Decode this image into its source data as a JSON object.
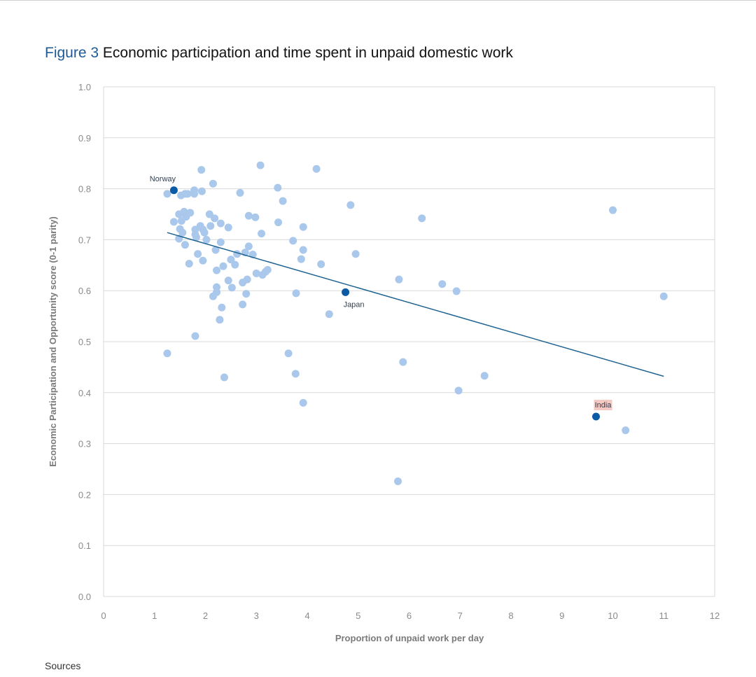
{
  "figure": {
    "label": "Figure 3",
    "title": "Economic participation and time spent in unpaid domestic work"
  },
  "footer": {
    "sources_label": "Sources"
  },
  "colors": {
    "point": "#a9c8eb",
    "highlight": "#0b5aa5",
    "trend": "#1f6391",
    "grid": "#d9d9d9",
    "tick_text": "#8a8a8a",
    "axis_label_text": "#7a7a7a",
    "india_label_bg": "#f4c9c4"
  },
  "chart_data": {
    "type": "scatter",
    "xlabel": "Proportion of unpaid work per day",
    "ylabel": "Economic Participation and Opportunity score (0-1 parity)",
    "xlim": [
      0,
      12
    ],
    "ylim": [
      0,
      1
    ],
    "xticks": [
      0,
      1,
      2,
      3,
      4,
      5,
      6,
      7,
      8,
      9,
      10,
      11,
      12
    ],
    "yticks": [
      "0.0",
      "0.1",
      "0.2",
      "0.3",
      "0.4",
      "0.5",
      "0.6",
      "0.7",
      "0.8",
      "0.9",
      "1.0"
    ],
    "grid": "horizontal",
    "points": [
      [
        1.25,
        0.79
      ],
      [
        1.6,
        0.79
      ],
      [
        1.78,
        0.79
      ],
      [
        1.78,
        0.797
      ],
      [
        1.93,
        0.795
      ],
      [
        1.52,
        0.787
      ],
      [
        1.65,
        0.79
      ],
      [
        2.15,
        0.81
      ],
      [
        1.92,
        0.837
      ],
      [
        3.08,
        0.846
      ],
      [
        4.18,
        0.839
      ],
      [
        3.42,
        0.802
      ],
      [
        2.68,
        0.792
      ],
      [
        3.52,
        0.776
      ],
      [
        4.85,
        0.768
      ],
      [
        10.0,
        0.758
      ],
      [
        6.25,
        0.742
      ],
      [
        1.48,
        0.75
      ],
      [
        1.58,
        0.755
      ],
      [
        1.7,
        0.753
      ],
      [
        1.62,
        0.745
      ],
      [
        2.08,
        0.75
      ],
      [
        2.18,
        0.742
      ],
      [
        1.38,
        0.735
      ],
      [
        1.53,
        0.737
      ],
      [
        2.3,
        0.732
      ],
      [
        1.9,
        0.727
      ],
      [
        2.1,
        0.727
      ],
      [
        1.5,
        0.721
      ],
      [
        1.8,
        0.72
      ],
      [
        1.95,
        0.72
      ],
      [
        2.45,
        0.724
      ],
      [
        1.55,
        0.714
      ],
      [
        1.98,
        0.714
      ],
      [
        1.8,
        0.71
      ],
      [
        1.48,
        0.702
      ],
      [
        1.82,
        0.705
      ],
      [
        2.02,
        0.7
      ],
      [
        1.6,
        0.69
      ],
      [
        2.3,
        0.695
      ],
      [
        2.2,
        0.68
      ],
      [
        1.85,
        0.672
      ],
      [
        1.95,
        0.659
      ],
      [
        1.68,
        0.653
      ],
      [
        2.85,
        0.747
      ],
      [
        2.98,
        0.744
      ],
      [
        3.43,
        0.734
      ],
      [
        3.1,
        0.712
      ],
      [
        3.92,
        0.725
      ],
      [
        2.85,
        0.687
      ],
      [
        2.78,
        0.675
      ],
      [
        2.62,
        0.672
      ],
      [
        2.93,
        0.671
      ],
      [
        2.5,
        0.661
      ],
      [
        2.58,
        0.651
      ],
      [
        2.35,
        0.648
      ],
      [
        2.22,
        0.64
      ],
      [
        3.72,
        0.698
      ],
      [
        3.92,
        0.68
      ],
      [
        3.88,
        0.662
      ],
      [
        4.27,
        0.652
      ],
      [
        3.22,
        0.641
      ],
      [
        3.18,
        0.637
      ],
      [
        3.0,
        0.634
      ],
      [
        3.12,
        0.631
      ],
      [
        2.45,
        0.62
      ],
      [
        2.82,
        0.622
      ],
      [
        2.73,
        0.616
      ],
      [
        2.22,
        0.607
      ],
      [
        2.52,
        0.606
      ],
      [
        2.22,
        0.597
      ],
      [
        2.8,
        0.594
      ],
      [
        2.15,
        0.589
      ],
      [
        3.78,
        0.595
      ],
      [
        2.32,
        0.567
      ],
      [
        2.73,
        0.573
      ],
      [
        2.28,
        0.543
      ],
      [
        4.43,
        0.554
      ],
      [
        4.95,
        0.672
      ],
      [
        5.8,
        0.622
      ],
      [
        6.65,
        0.613
      ],
      [
        6.93,
        0.599
      ],
      [
        11.0,
        0.589
      ],
      [
        1.8,
        0.511
      ],
      [
        1.25,
        0.477
      ],
      [
        3.63,
        0.477
      ],
      [
        5.88,
        0.46
      ],
      [
        3.77,
        0.437
      ],
      [
        2.37,
        0.43
      ],
      [
        7.48,
        0.433
      ],
      [
        6.97,
        0.404
      ],
      [
        3.92,
        0.38
      ],
      [
        10.25,
        0.326
      ],
      [
        5.78,
        0.226
      ]
    ],
    "highlighted": [
      {
        "name": "Norway",
        "x": 1.38,
        "y": 0.797
      },
      {
        "name": "Japan",
        "x": 4.75,
        "y": 0.597
      },
      {
        "name": "India",
        "x": 9.67,
        "y": 0.353
      }
    ],
    "trend_line": {
      "x": [
        1.25,
        11.0
      ],
      "y": [
        0.714,
        0.432
      ]
    }
  }
}
